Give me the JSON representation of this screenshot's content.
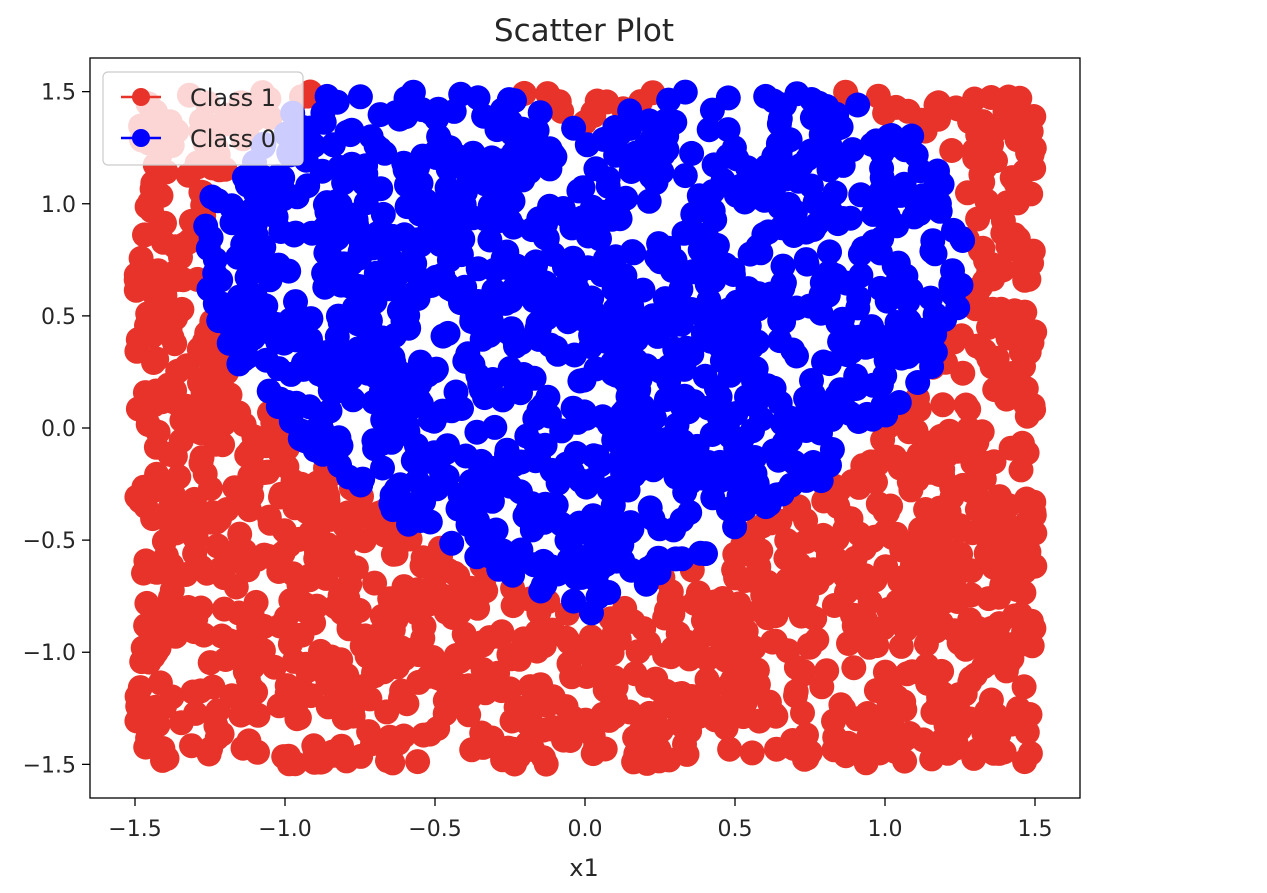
{
  "chart_data": {
    "type": "scatter",
    "title": "Scatter Plot",
    "xlabel": "x1",
    "ylabel": "",
    "xlim": [
      -1.65,
      1.65
    ],
    "ylim": [
      -1.65,
      1.65
    ],
    "x_ticks": [
      -1.5,
      -1.0,
      -0.5,
      0.0,
      0.5,
      1.0,
      1.5
    ],
    "y_ticks": [
      -1.5,
      -1.0,
      -0.5,
      0.0,
      0.5,
      1.0,
      1.5
    ],
    "x_tick_labels": [
      "−1.5",
      "−1.0",
      "−0.5",
      "0.0",
      "0.5",
      "1.0",
      "1.5"
    ],
    "y_tick_labels": [
      "−1.5",
      "−1.0",
      "−0.5",
      "0.0",
      "0.5",
      "1.0",
      "1.5"
    ],
    "grid": false,
    "legend_position": "top-left",
    "legend": [
      {
        "label": "Class 1",
        "color": "#e8332a"
      },
      {
        "label": "Class 0",
        "color": "#0000ff"
      }
    ],
    "point_distribution": {
      "x_range": [
        -1.5,
        1.5
      ],
      "y_range": [
        -1.5,
        1.5
      ],
      "count": 2500,
      "rule": "Class 0 inside a heart-shaped region (lobes at x≈±0.5, top y≈1.25, tip y≈-1.0, width ±1.1); Class 1 elsewhere"
    },
    "series": [
      {
        "name": "Class 1",
        "color": "#e8332a",
        "region": "outside heart"
      },
      {
        "name": "Class 0",
        "color": "#0000ff",
        "region": "inside heart"
      }
    ]
  }
}
